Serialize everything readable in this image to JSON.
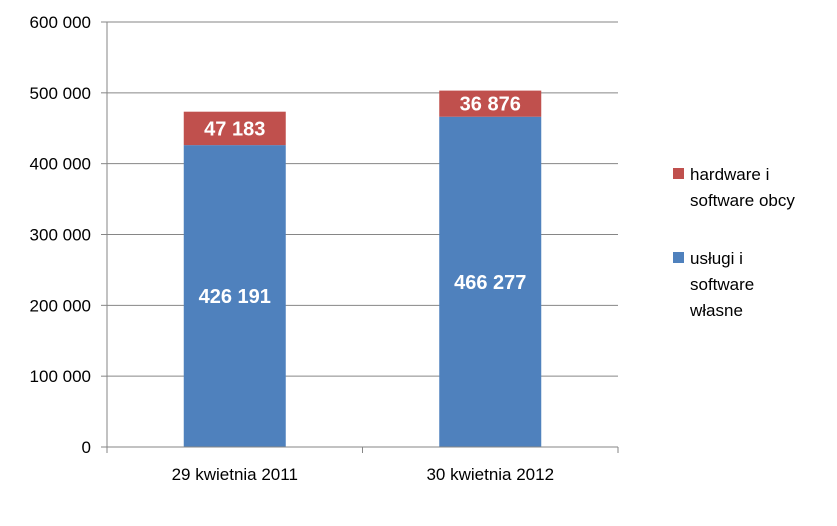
{
  "chart_data": {
    "type": "bar",
    "stacked": true,
    "categories": [
      "29 kwietnia 2011",
      "30 kwietnia 2012"
    ],
    "series": [
      {
        "name": "usługi i software własne",
        "legend_lines": [
          "usługi i",
          "software",
          "własne"
        ],
        "values": [
          426191,
          466277
        ],
        "value_labels": [
          "426 191",
          "466 277"
        ],
        "color": "#4F81BD"
      },
      {
        "name": "hardware i software obcy",
        "legend_lines": [
          "hardware i",
          "software obcy"
        ],
        "values": [
          47183,
          36876
        ],
        "value_labels": [
          "47 183",
          "36 876"
        ],
        "color": "#C0504D"
      }
    ],
    "y_ticks": [
      "0",
      "100 000",
      "200 000",
      "300 000",
      "400 000",
      "500 000",
      "600 000"
    ],
    "ylim": [
      0,
      600000
    ],
    "grid": true,
    "legend_position": "right"
  }
}
